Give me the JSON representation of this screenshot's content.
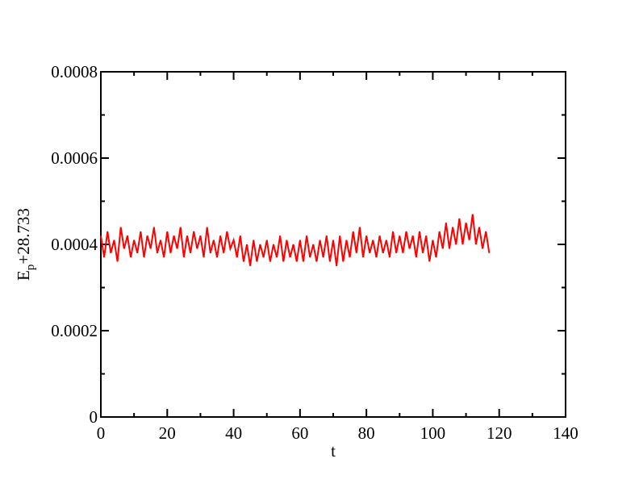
{
  "chart_data": {
    "type": "line",
    "xlabel": "t",
    "ylabel": {
      "base": "E",
      "subscript": "p",
      "suffix": "+28.733"
    },
    "x": [
      0,
      1,
      2,
      3,
      4,
      5,
      6,
      7,
      8,
      9,
      10,
      11,
      12,
      13,
      14,
      15,
      16,
      17,
      18,
      19,
      20,
      21,
      22,
      23,
      24,
      25,
      26,
      27,
      28,
      29,
      30,
      31,
      32,
      33,
      34,
      35,
      36,
      37,
      38,
      39,
      40,
      41,
      42,
      43,
      44,
      45,
      46,
      47,
      48,
      49,
      50,
      51,
      52,
      53,
      54,
      55,
      56,
      57,
      58,
      59,
      60,
      61,
      62,
      63,
      64,
      65,
      66,
      67,
      68,
      69,
      70,
      71,
      72,
      73,
      74,
      75,
      76,
      77,
      78,
      79,
      80,
      81,
      82,
      83,
      84,
      85,
      86,
      87,
      88,
      89,
      90,
      91,
      92,
      93,
      94,
      95,
      96,
      97,
      98,
      99,
      100,
      101,
      102,
      103,
      104,
      105,
      106,
      107,
      108,
      109,
      110,
      111,
      112,
      113,
      114,
      115,
      116,
      117
    ],
    "series": [
      {
        "color": "#ff0000",
        "values": [
          0.00042,
          0.00037,
          0.00043,
          0.00038,
          0.00041,
          0.00036,
          0.00044,
          0.00039,
          0.00042,
          0.00037,
          0.00041,
          0.00038,
          0.00043,
          0.00037,
          0.00042,
          0.00039,
          0.00044,
          0.00038,
          0.00041,
          0.00037,
          0.00043,
          0.00038,
          0.00042,
          0.00039,
          0.00044,
          0.00037,
          0.00042,
          0.00038,
          0.00043,
          0.00039,
          0.00042,
          0.00037,
          0.00044,
          0.00038,
          0.00041,
          0.00037,
          0.00042,
          0.00038,
          0.00043,
          0.00039,
          0.00041,
          0.00037,
          0.00042,
          0.00036,
          0.0004,
          0.00035,
          0.00041,
          0.00036,
          0.0004,
          0.00037,
          0.00041,
          0.00036,
          0.0004,
          0.00037,
          0.00042,
          0.00036,
          0.00041,
          0.00037,
          0.0004,
          0.00036,
          0.00041,
          0.00036,
          0.00042,
          0.00037,
          0.0004,
          0.00036,
          0.00041,
          0.00037,
          0.00042,
          0.00036,
          0.00041,
          0.00035,
          0.00042,
          0.00036,
          0.00041,
          0.00037,
          0.00043,
          0.00038,
          0.00044,
          0.00037,
          0.00042,
          0.00038,
          0.00041,
          0.00037,
          0.00042,
          0.00038,
          0.00041,
          0.00037,
          0.00043,
          0.00038,
          0.00042,
          0.00038,
          0.00043,
          0.00039,
          0.00042,
          0.00037,
          0.00043,
          0.00038,
          0.00042,
          0.00036,
          0.00041,
          0.00037,
          0.00043,
          0.00039,
          0.00045,
          0.00039,
          0.00044,
          0.0004,
          0.00046,
          0.0004,
          0.00045,
          0.00041,
          0.00047,
          0.0004,
          0.00044,
          0.00039,
          0.00043,
          0.00038
        ]
      }
    ],
    "xlim": [
      0,
      140
    ],
    "xticks": [
      0,
      20,
      40,
      60,
      80,
      100,
      120,
      140
    ],
    "xticks_minor": [
      10,
      30,
      50,
      70,
      90,
      110,
      130
    ],
    "ylim": [
      0,
      0.0008
    ],
    "yticks": [
      0,
      0.0002,
      0.0004,
      0.0006,
      0.0008
    ],
    "yticks_minor": [
      0.0001,
      0.0003,
      0.0005,
      0.0007
    ]
  }
}
